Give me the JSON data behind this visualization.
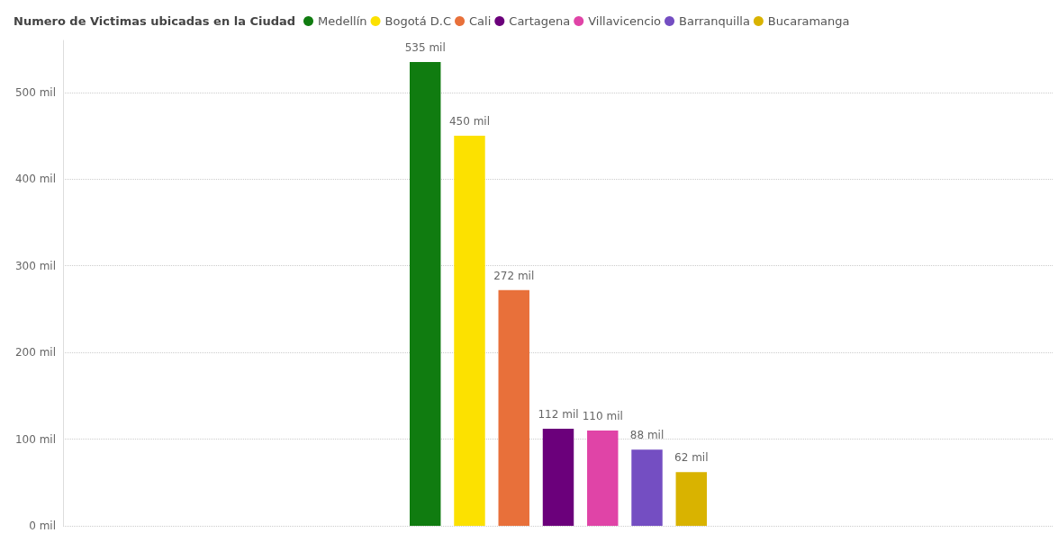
{
  "chart_data": {
    "type": "bar",
    "legend_title": "Numero de Victimas ubicadas en la Ciudad",
    "categories": [
      null
    ],
    "series": [
      {
        "name": "Medellín",
        "color": "#107c10",
        "values": [
          535
        ],
        "value_labels": [
          "535 mil"
        ]
      },
      {
        "name": "Bogotá D.C",
        "color": "#fce100",
        "values": [
          450
        ],
        "value_labels": [
          "450 mil"
        ]
      },
      {
        "name": "Cali",
        "color": "#e8703a",
        "values": [
          272
        ],
        "value_labels": [
          "272 mil"
        ]
      },
      {
        "name": "Cartagena",
        "color": "#6b007b",
        "values": [
          112
        ],
        "value_labels": [
          "112 mil"
        ]
      },
      {
        "name": "Villavicencio",
        "color": "#e044a7",
        "values": [
          110
        ],
        "value_labels": [
          "110 mil"
        ]
      },
      {
        "name": "Barranquilla",
        "color": "#744ec2",
        "values": [
          88
        ],
        "value_labels": [
          "88 mil"
        ]
      },
      {
        "name": "Bucaramanga",
        "color": "#d9b300",
        "values": [
          62
        ],
        "value_labels": [
          "62 mil"
        ]
      }
    ],
    "ylim": [
      0,
      560
    ],
    "yticks": [
      {
        "value": 0,
        "label": "0 mil"
      },
      {
        "value": 100,
        "label": "100 mil"
      },
      {
        "value": 200,
        "label": "200 mil"
      },
      {
        "value": 300,
        "label": "300 mil"
      },
      {
        "value": 400,
        "label": "400 mil"
      },
      {
        "value": 500,
        "label": "500 mil"
      }
    ],
    "grid": "y",
    "legend": "top left",
    "tick_labels": "y"
  }
}
